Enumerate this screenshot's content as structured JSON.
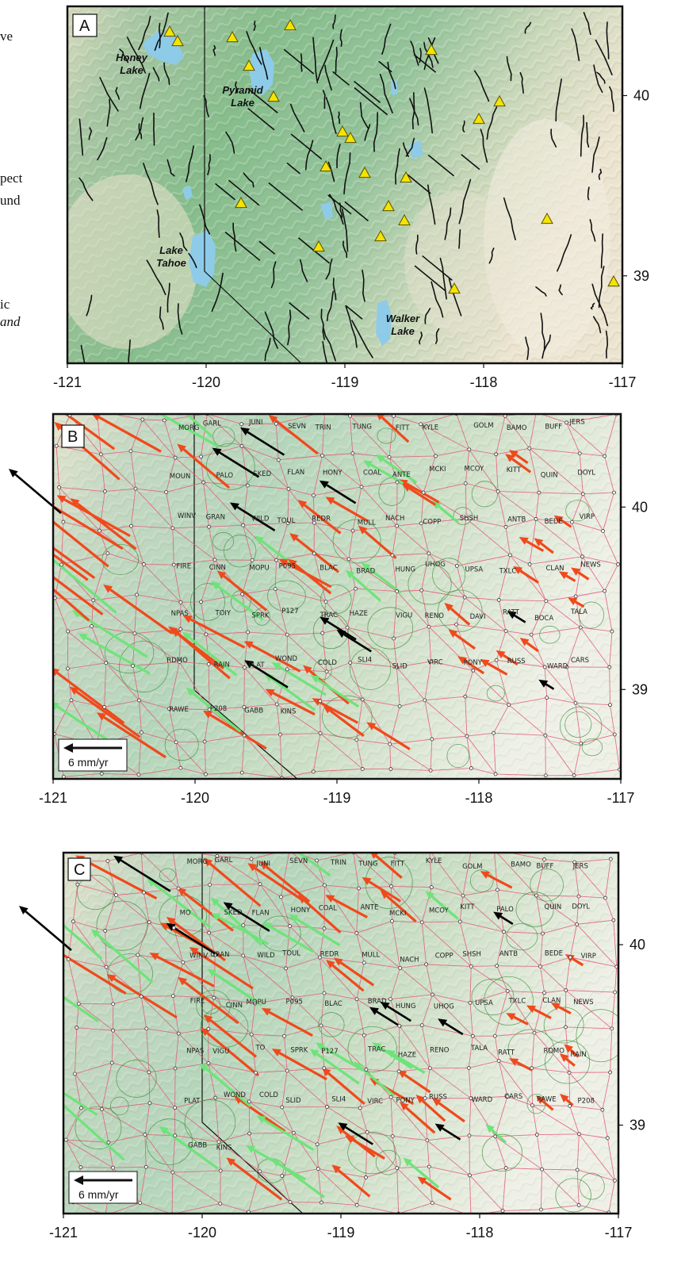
{
  "clipped_margin_text": [
    {
      "text": "ve",
      "italic": false
    },
    {
      "text": "pect",
      "italic": false
    },
    {
      "text": "und",
      "italic": false
    },
    {
      "text": "ic",
      "italic": false
    },
    {
      "text": "and",
      "italic": true
    }
  ],
  "panels": [
    {
      "id": "A",
      "label": "A",
      "x_ticks": [
        "-121",
        "-120",
        "-119",
        "-118",
        "-117"
      ],
      "y_ticks": [
        "40",
        "39"
      ],
      "lakes": [
        {
          "name": "Honey\nLake"
        },
        {
          "name": "Pyramid\nLake"
        },
        {
          "name": "Lake\nTahoe"
        },
        {
          "name": "Walker\nLake"
        }
      ]
    },
    {
      "id": "B",
      "label": "B",
      "x_ticks": [
        "-121",
        "-120",
        "-119",
        "-118",
        "-117"
      ],
      "y_ticks": [
        "40",
        "39"
      ],
      "scale_label": "6 mm/yr",
      "stations": [
        "MORG",
        "GARL",
        "JUNI",
        "SEVN",
        "TRIN",
        "TUNG",
        "FITT",
        "KYLE",
        "GOLM",
        "BAMO",
        "BUFF",
        "JERS",
        "MOUN",
        "PALO",
        "SKED",
        "FLAN",
        "HONY",
        "COAL",
        "ANTE",
        "MCKI",
        "MCOY",
        "KITT",
        "QUIN",
        "DOYL",
        "WINV",
        "GRAN",
        "WILD",
        "TOUL",
        "REDR",
        "MULL",
        "NACH",
        "COPP",
        "SHSH",
        "ANTB",
        "BEDE",
        "VIRP",
        "FIRE",
        "CINN",
        "MOPU",
        "P095",
        "BLAC",
        "BRAD",
        "HUNG",
        "UHOG",
        "UPSA",
        "TXLC",
        "CLAN",
        "NEWS",
        "NPAS",
        "TOIY",
        "SPRK",
        "P127",
        "TRAC",
        "HAZE",
        "VIGU",
        "RENO",
        "DAVI",
        "RATT",
        "BOCA",
        "TALA",
        "RDMO",
        "RAIN",
        "PLAT",
        "WOND",
        "COLD",
        "SLI4",
        "SLID",
        "VIRC",
        "PONY",
        "RUSS",
        "WARD",
        "CARS",
        "RAWE",
        "P208",
        "GABB",
        "KINS"
      ]
    },
    {
      "id": "C",
      "label": "C",
      "x_ticks": [
        "-121",
        "-120",
        "-119",
        "-118",
        "-117"
      ],
      "y_ticks": [
        "40",
        "39"
      ],
      "scale_label": "6 mm/yr",
      "stations": [
        "MORG",
        "GARL",
        "JUNI",
        "SEVN",
        "TRIN",
        "TUNG",
        "FITT",
        "KYLE",
        "GOLM",
        "BAMO",
        "BUFF",
        "JERS",
        "MO",
        "SKED",
        "FLAN",
        "HONY",
        "COAL",
        "ANTE",
        "MCKI",
        "MCOY",
        "KITT",
        "PALO",
        "QUIN",
        "DOYL",
        "WINV",
        "GRAN",
        "WILD",
        "TOUL",
        "REDR",
        "MULL",
        "NACH",
        "COPP",
        "SHSH",
        "ANTB",
        "BEDE",
        "VIRP",
        "FIRE",
        "CINN",
        "MOPU",
        "P095",
        "BLAC",
        "BRAD",
        "HUNG",
        "UHOG",
        "UPSA",
        "TXLC",
        "CLAN",
        "NEWS",
        "NPAS",
        "VIGU",
        "TO",
        "SPRK",
        "P127",
        "TRAC",
        "HAZE",
        "RENO",
        "TALA",
        "RATT",
        "RDMO",
        "RAIN",
        "PLAT",
        "WOND",
        "COLD",
        "SLID",
        "SLI4",
        "VIRC",
        "PONY",
        "RUSS",
        "WARD",
        "CARS",
        "RAWE",
        "P208",
        "GABB",
        "KINS"
      ]
    }
  ],
  "colors": {
    "terrain_green": "#8fbf90",
    "terrain_tan": "#e8dcc0",
    "lake_blue": "#8ecbe9",
    "fault_black": "#111111",
    "volcano_yellow": "#f5e400",
    "network_pink": "#e35b7a",
    "arrow_red": "#f0491c",
    "arrow_green": "#6ee37a",
    "arrow_black": "#000000",
    "ellipse_green": "#3b8f3b"
  },
  "icons": [
    "volcano-triangle-icon",
    "gps-station-dot-icon",
    "velocity-arrow-icon",
    "error-ellipse-icon"
  ]
}
